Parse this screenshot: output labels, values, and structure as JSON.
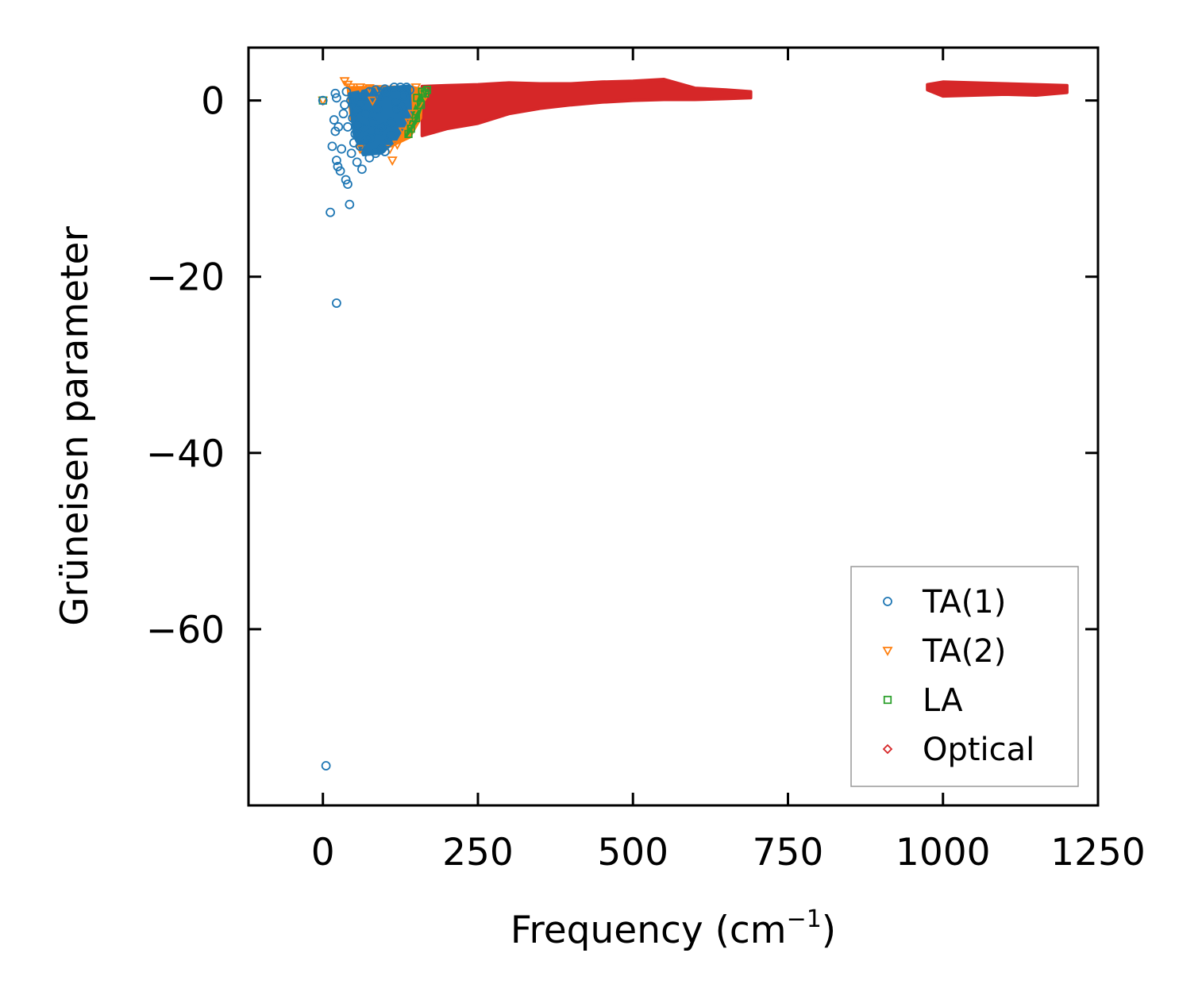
{
  "chart_data": {
    "type": "scatter",
    "title": "",
    "xlabel": "Frequency (cm",
    "xlabel_sup": "−1",
    "xlabel_end": ")",
    "ylabel": "Grüneisen parameter",
    "xlim": [
      -120,
      1250
    ],
    "ylim": [
      -80,
      6
    ],
    "xticks": [
      0,
      250,
      500,
      750,
      1000,
      1250
    ],
    "xtick_labels": [
      "0",
      "250",
      "500",
      "750",
      "1000",
      "1250"
    ],
    "yticks": [
      0,
      -20,
      -40,
      -60
    ],
    "ytick_labels": [
      "0",
      "−20",
      "−40",
      "−60"
    ],
    "legend_position": "lower-right",
    "series": [
      {
        "name": "TA(1)",
        "marker": "circle",
        "color": "#1f77b4",
        "points": [
          [
            5,
            -75.5
          ],
          [
            22,
            -23
          ],
          [
            12,
            -12.7
          ],
          [
            43,
            -11.8
          ],
          [
            40,
            -9.5
          ],
          [
            37,
            -9.0
          ],
          [
            28,
            -8.0
          ],
          [
            24,
            -7.5
          ],
          [
            22,
            -6.8
          ],
          [
            15,
            -5.2
          ],
          [
            30,
            -5.5
          ],
          [
            46,
            -6.0
          ],
          [
            20,
            -3.5
          ],
          [
            25,
            -3.0
          ],
          [
            18,
            -2.2
          ],
          [
            33,
            -1.5
          ],
          [
            35,
            -0.5
          ],
          [
            20,
            0.8
          ],
          [
            22,
            0.3
          ],
          [
            50,
            -4.8
          ],
          [
            55,
            -7.0
          ],
          [
            63,
            -7.8
          ],
          [
            60,
            -5.2
          ],
          [
            70,
            -4.5
          ],
          [
            75,
            -6.5
          ],
          [
            85,
            -6.0
          ],
          [
            95,
            -5.5
          ],
          [
            100,
            -5.8
          ],
          [
            110,
            -4.0
          ],
          [
            40,
            -3.0
          ],
          [
            48,
            -2.0
          ],
          [
            55,
            -1.0
          ],
          [
            65,
            0.5
          ],
          [
            75,
            1.0
          ],
          [
            85,
            1.2
          ],
          [
            100,
            1.3
          ],
          [
            115,
            1.5
          ],
          [
            125,
            1.5
          ],
          [
            135,
            1.5
          ],
          [
            140,
            1.2
          ],
          [
            130,
            0.5
          ],
          [
            120,
            -1.0
          ],
          [
            110,
            -2.5
          ],
          [
            90,
            -3.5
          ],
          [
            80,
            -2.5
          ],
          [
            70,
            -1.5
          ],
          [
            60,
            -0.5
          ],
          [
            45,
            0.0
          ],
          [
            38,
            1.0
          ],
          [
            105,
            -4.8
          ],
          [
            95,
            -3.0
          ],
          [
            88,
            -1.0
          ],
          [
            92,
            0.5
          ],
          [
            118,
            -0.2
          ],
          [
            128,
            -0.8
          ],
          [
            102,
            0.8
          ],
          [
            66,
            -3.2
          ],
          [
            78,
            -4.2
          ],
          [
            58,
            -2.8
          ],
          [
            52,
            -3.8
          ],
          [
            0,
            0
          ]
        ]
      },
      {
        "name": "TA(2)",
        "marker": "triangle-down",
        "color": "#ff7f0e",
        "points": [
          [
            0,
            0
          ],
          [
            35,
            2.2
          ],
          [
            40,
            1.8
          ],
          [
            45,
            1.5
          ],
          [
            60,
            1.5
          ],
          [
            75,
            1.4
          ],
          [
            90,
            1.3
          ],
          [
            150,
            1.5
          ],
          [
            160,
            1.0
          ],
          [
            155,
            -0.5
          ],
          [
            145,
            -1.5
          ],
          [
            140,
            -2.5
          ],
          [
            130,
            -3.5
          ],
          [
            120,
            -5.0
          ],
          [
            112,
            -6.8
          ],
          [
            108,
            -5.5
          ],
          [
            60,
            -5.5
          ],
          [
            80,
            0.0
          ],
          [
            165,
            0.5
          ]
        ]
      },
      {
        "name": "LA",
        "marker": "square",
        "color": "#2ca02c",
        "points": [
          [
            0,
            0
          ],
          [
            138,
            -3.8
          ],
          [
            142,
            -3.2
          ],
          [
            150,
            -2.0
          ],
          [
            158,
            -0.5
          ],
          [
            165,
            0.8
          ],
          [
            168,
            1.2
          ],
          [
            160,
            1.0
          ],
          [
            152,
            0.3
          ]
        ]
      },
      {
        "name": "Optical",
        "marker": "diamond",
        "color": "#d62728",
        "bands": [
          {
            "x": [
              160,
              200,
              250,
              300,
              350,
              400,
              450,
              500,
              550,
              600,
              650,
              690
            ],
            "upper": [
              1.6,
              1.7,
              1.8,
              2.0,
              1.9,
              1.9,
              2.1,
              2.2,
              2.4,
              1.4,
              1.2,
              1.0
            ],
            "lower": [
              -4.0,
              -3.2,
              -2.6,
              -1.5,
              -0.9,
              -0.5,
              -0.2,
              0.0,
              0.1,
              0.1,
              0.2,
              0.3
            ]
          },
          {
            "x": [
              975,
              1000,
              1050,
              1100,
              1150,
              1200
            ],
            "upper": [
              1.8,
              2.1,
              2.0,
              1.9,
              1.8,
              1.7
            ],
            "lower": [
              1.2,
              0.5,
              0.6,
              0.7,
              0.6,
              0.9
            ]
          }
        ]
      }
    ]
  }
}
